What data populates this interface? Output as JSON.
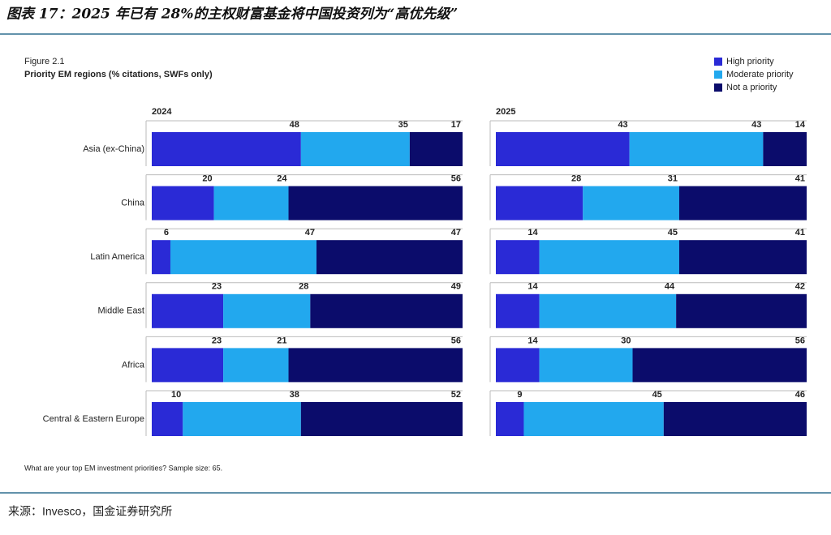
{
  "header": {
    "title": "图表 17：2025 年已有 28%的主权财富基金将中国投资列为“高优先级”"
  },
  "figure": {
    "label": "Figure 2.1",
    "title": "Priority EM regions (% citations, SWFs only)",
    "note": "What are your top EM investment priorities? Sample size: 65."
  },
  "source": "来源：Invesco，国金证券研究所",
  "chart_data": [
    {
      "type": "bar",
      "orientation": "horizontal",
      "stacked": true,
      "title": "2024",
      "xlim": [
        0,
        100
      ],
      "categories": [
        "Asia (ex-China)",
        "China",
        "Latin America",
        "Middle East",
        "Africa",
        "Central & Eastern Europe"
      ],
      "series": [
        {
          "name": "High priority",
          "color": "#2a2ad6",
          "values": [
            48,
            20,
            6,
            23,
            23,
            10
          ]
        },
        {
          "name": "Moderate priority",
          "color": "#22a8ee",
          "values": [
            35,
            24,
            47,
            28,
            21,
            38
          ]
        },
        {
          "name": "Not a priority",
          "color": "#0b0c6b",
          "values": [
            17,
            56,
            47,
            49,
            56,
            52
          ]
        }
      ]
    },
    {
      "type": "bar",
      "orientation": "horizontal",
      "stacked": true,
      "title": "2025",
      "xlim": [
        0,
        100
      ],
      "series": [
        {
          "color": "#2a2ad6",
          "values": [
            43,
            28,
            14,
            14,
            14,
            9
          ]
        },
        {
          "color": "#22a8ee",
          "values": [
            43,
            31,
            45,
            44,
            30,
            45
          ]
        },
        {
          "color": "#0b0c6b",
          "values": [
            14,
            41,
            41,
            42,
            56,
            46
          ]
        }
      ]
    }
  ]
}
